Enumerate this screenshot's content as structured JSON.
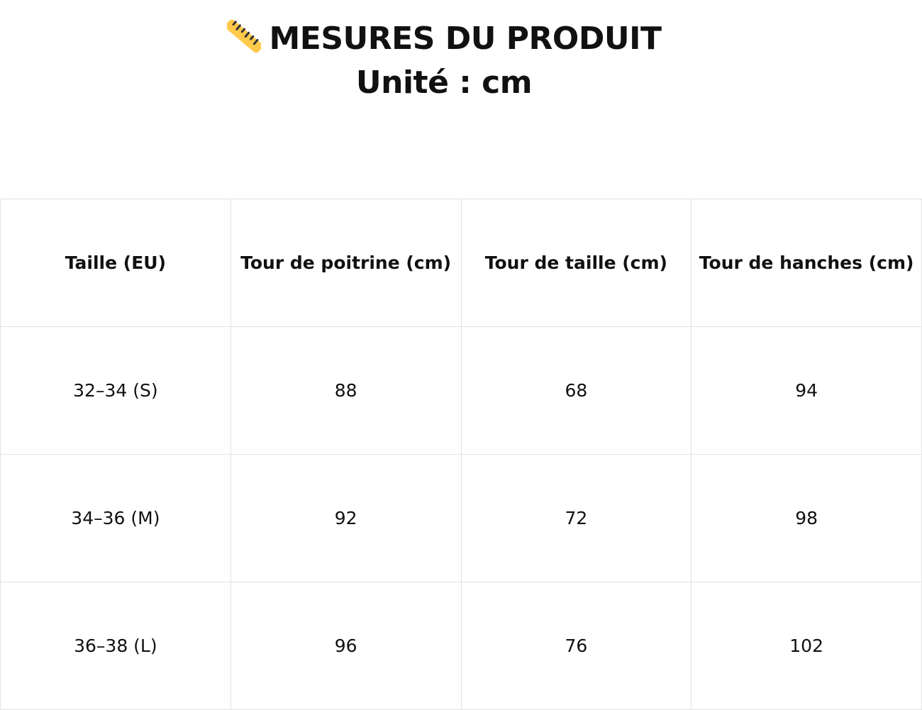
{
  "header": {
    "icon": "ruler-icon",
    "icon_color": "#FFC94A",
    "title": "MESURES DU PRODUIT",
    "subtitle": "Unité : cm"
  },
  "table": {
    "headers": [
      "Taille (EU)",
      "Tour de poitrine (cm)",
      "Tour de taille (cm)",
      "Tour de hanches (cm)"
    ],
    "rows": [
      [
        "32–34 (S)",
        "88",
        "68",
        "94"
      ],
      [
        "34–36 (M)",
        "92",
        "72",
        "98"
      ],
      [
        "36–38 (L)",
        "96",
        "76",
        "102"
      ]
    ]
  }
}
